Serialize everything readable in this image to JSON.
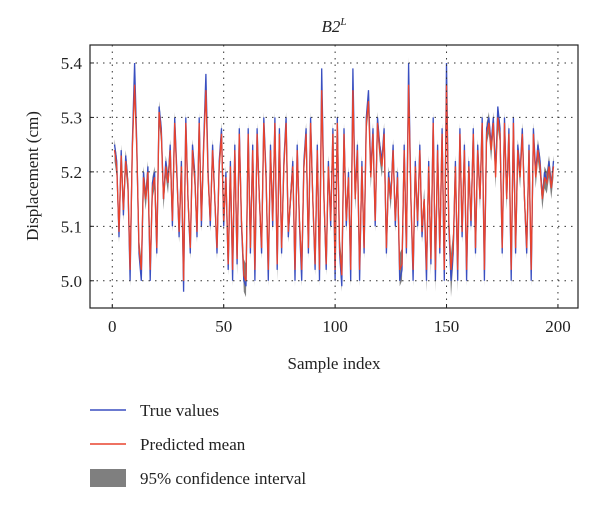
{
  "chart_data": {
    "type": "line",
    "title": "B2",
    "title_superscript": "L",
    "x_label": "Sample index",
    "y_label": "Displacement (cm)",
    "xlim": [
      -10,
      209
    ],
    "ylim": [
      4.95,
      5.433
    ],
    "xticks": [
      0,
      50,
      100,
      150,
      200
    ],
    "yticks": [
      {
        "value": 5.0,
        "label": "5.0"
      },
      {
        "value": 5.1,
        "label": "5.1"
      },
      {
        "value": 5.2,
        "label": "5.2"
      },
      {
        "value": 5.3,
        "label": "5.3"
      },
      {
        "value": 5.4,
        "label": "5.4"
      }
    ],
    "grid": true,
    "x": [
      1,
      2,
      3,
      4,
      5,
      6,
      7,
      8,
      9,
      10,
      11,
      12,
      13,
      14,
      15,
      16,
      17,
      18,
      19,
      20,
      21,
      22,
      23,
      24,
      25,
      26,
      27,
      28,
      29,
      30,
      31,
      32,
      33,
      34,
      35,
      36,
      37,
      38,
      39,
      40,
      41,
      42,
      43,
      44,
      45,
      46,
      47,
      48,
      49,
      50,
      51,
      52,
      53,
      54,
      55,
      56,
      57,
      58,
      59,
      60,
      61,
      62,
      63,
      64,
      65,
      66,
      67,
      68,
      69,
      70,
      71,
      72,
      73,
      74,
      75,
      76,
      77,
      78,
      79,
      80,
      81,
      82,
      83,
      84,
      85,
      86,
      87,
      88,
      89,
      90,
      91,
      92,
      93,
      94,
      95,
      96,
      97,
      98,
      99,
      100,
      101,
      102,
      103,
      104,
      105,
      106,
      107,
      108,
      109,
      110,
      111,
      112,
      113,
      114,
      115,
      116,
      117,
      118,
      119,
      120,
      121,
      122,
      123,
      124,
      125,
      126,
      127,
      128,
      129,
      130,
      131,
      132,
      133,
      134,
      135,
      136,
      137,
      138,
      139,
      140,
      141,
      142,
      143,
      144,
      145,
      146,
      147,
      148,
      149,
      150,
      151,
      152,
      153,
      154,
      155,
      156,
      157,
      158,
      159,
      160,
      161,
      162,
      163,
      164,
      165,
      166,
      167,
      168,
      169,
      170,
      171,
      172,
      173,
      174,
      175,
      176,
      177,
      178,
      179,
      180,
      181,
      182,
      183,
      184,
      185,
      186,
      187,
      188,
      189,
      190,
      191,
      192,
      193,
      194,
      195,
      196,
      197,
      198
    ],
    "band": {
      "name": "95% confidence interval",
      "color": "#7f7f7f",
      "lower": [
        5.22,
        5.19,
        5.07,
        5.21,
        5.11,
        5.2,
        5.16,
        4.99,
        5.22,
        5.33,
        5.22,
        5.04,
        5.0,
        5.17,
        5.13,
        5.18,
        5.0,
        5.15,
        5.17,
        5.04,
        5.29,
        5.25,
        5.13,
        5.19,
        5.16,
        5.22,
        5.09,
        5.27,
        5.17,
        5.07,
        5.19,
        4.98,
        5.27,
        5.13,
        5.04,
        5.22,
        5.17,
        5.07,
        5.27,
        5.09,
        5.22,
        5.33,
        5.17,
        5.09,
        5.22,
        5.13,
        5.04,
        5.19,
        5.25,
        5.09,
        5.17,
        5.01,
        5.19,
        4.99,
        5.22,
        5.01,
        5.25,
        5.09,
        4.98,
        4.97,
        5.25,
        5.04,
        5.22,
        4.99,
        5.25,
        5.13,
        5.04,
        5.27,
        5.17,
        4.99,
        5.22,
        5.09,
        5.27,
        5.0,
        5.25,
        5.04,
        5.19,
        5.27,
        5.07,
        5.13,
        5.19,
        4.99,
        5.22,
        5.09,
        4.99,
        5.19,
        5.25,
        5.04,
        5.27,
        5.13,
        5.01,
        5.22,
        4.99,
        5.33,
        5.13,
        5.01,
        5.19,
        5.09,
        5.25,
        4.99,
        5.27,
        5.04,
        4.98,
        5.25,
        5.09,
        5.17,
        4.99,
        5.33,
        5.13,
        5.22,
        4.99,
        5.19,
        5.04,
        5.27,
        5.31,
        5.17,
        5.25,
        5.09,
        5.27,
        5.22,
        5.19,
        5.25,
        5.04,
        5.17,
        5.13,
        5.22,
        5.09,
        5.17,
        4.99,
        5.0,
        5.22,
        5.04,
        5.33,
        5.13,
        4.99,
        5.19,
        5.09,
        5.22,
        5.07,
        5.13,
        4.98,
        5.19,
        5.01,
        5.27,
        4.98,
        5.22,
        5.04,
        5.25,
        4.99,
        5.33,
        5.09,
        4.97,
        5.03,
        5.19,
        4.98,
        5.25,
        5.07,
        5.22,
        4.99,
        5.19,
        5.09,
        5.25,
        5.04,
        5.22,
        5.13,
        5.27,
        4.99,
        5.25,
        5.27,
        5.22,
        5.27,
        5.17,
        5.28,
        5.25,
        5.04,
        5.27,
        5.13,
        5.25,
        4.99,
        5.27,
        5.04,
        5.22,
        5.17,
        5.25,
        5.13,
        5.04,
        5.22,
        4.99,
        5.25,
        5.17,
        5.22,
        5.19,
        5.13,
        5.17,
        5.16,
        5.19,
        5.15,
        5.19
      ],
      "upper": [
        5.26,
        5.23,
        5.11,
        5.25,
        5.15,
        5.24,
        5.2,
        5.05,
        5.26,
        5.39,
        5.26,
        5.08,
        5.04,
        5.21,
        5.17,
        5.22,
        5.04,
        5.19,
        5.21,
        5.08,
        5.33,
        5.29,
        5.17,
        5.23,
        5.2,
        5.26,
        5.13,
        5.31,
        5.21,
        5.11,
        5.23,
        5.02,
        5.31,
        5.17,
        5.08,
        5.26,
        5.21,
        5.11,
        5.31,
        5.13,
        5.26,
        5.37,
        5.21,
        5.13,
        5.26,
        5.17,
        5.08,
        5.23,
        5.29,
        5.13,
        5.21,
        5.05,
        5.23,
        5.05,
        5.26,
        5.07,
        5.29,
        5.13,
        5.04,
        5.03,
        5.29,
        5.08,
        5.26,
        5.05,
        5.29,
        5.17,
        5.08,
        5.31,
        5.21,
        5.05,
        5.26,
        5.13,
        5.31,
        5.06,
        5.29,
        5.08,
        5.23,
        5.31,
        5.11,
        5.17,
        5.23,
        5.05,
        5.26,
        5.13,
        5.05,
        5.23,
        5.29,
        5.08,
        5.31,
        5.17,
        5.05,
        5.26,
        5.05,
        5.37,
        5.17,
        5.05,
        5.23,
        5.13,
        5.29,
        5.05,
        5.31,
        5.08,
        5.04,
        5.29,
        5.13,
        5.21,
        5.05,
        5.37,
        5.17,
        5.26,
        5.05,
        5.23,
        5.08,
        5.31,
        5.35,
        5.21,
        5.29,
        5.13,
        5.31,
        5.26,
        5.23,
        5.29,
        5.08,
        5.21,
        5.17,
        5.26,
        5.13,
        5.21,
        5.05,
        5.06,
        5.26,
        5.08,
        5.41,
        5.17,
        5.05,
        5.23,
        5.13,
        5.26,
        5.11,
        5.17,
        5.05,
        5.23,
        5.07,
        5.31,
        5.05,
        5.26,
        5.08,
        5.29,
        5.05,
        5.39,
        5.13,
        5.05,
        5.09,
        5.23,
        5.05,
        5.29,
        5.11,
        5.26,
        5.05,
        5.23,
        5.13,
        5.29,
        5.08,
        5.26,
        5.17,
        5.31,
        5.05,
        5.29,
        5.31,
        5.26,
        5.31,
        5.21,
        5.32,
        5.29,
        5.08,
        5.31,
        5.17,
        5.29,
        5.05,
        5.31,
        5.08,
        5.26,
        5.21,
        5.29,
        5.17,
        5.08,
        5.26,
        5.05,
        5.29,
        5.21,
        5.26,
        5.23,
        5.17,
        5.21,
        5.2,
        5.23,
        5.19,
        5.23
      ]
    },
    "series": [
      {
        "name": "True values",
        "color": "#3a4fc0",
        "values": [
          5.25,
          5.22,
          5.08,
          5.24,
          5.12,
          5.23,
          5.18,
          5.0,
          5.25,
          5.4,
          5.25,
          5.05,
          5.0,
          5.2,
          5.15,
          5.21,
          5.0,
          5.18,
          5.2,
          5.05,
          5.32,
          5.28,
          5.15,
          5.22,
          5.18,
          5.25,
          5.1,
          5.3,
          5.2,
          5.08,
          5.22,
          4.98,
          5.3,
          5.15,
          5.05,
          5.25,
          5.2,
          5.08,
          5.3,
          5.1,
          5.25,
          5.38,
          5.2,
          5.1,
          5.25,
          5.15,
          5.05,
          5.22,
          5.28,
          5.1,
          5.2,
          5.02,
          5.22,
          5.0,
          5.25,
          5.03,
          5.28,
          5.1,
          5.0,
          4.99,
          5.28,
          5.05,
          5.25,
          5.0,
          5.28,
          5.15,
          5.05,
          5.3,
          5.2,
          5.0,
          5.25,
          5.1,
          5.3,
          5.02,
          5.28,
          5.05,
          5.22,
          5.3,
          5.08,
          5.15,
          5.22,
          5.0,
          5.25,
          5.1,
          5.0,
          5.22,
          5.28,
          5.05,
          5.3,
          5.15,
          5.02,
          5.25,
          5.0,
          5.39,
          5.15,
          5.02,
          5.22,
          5.1,
          5.28,
          5.0,
          5.3,
          5.05,
          4.99,
          5.28,
          5.1,
          5.2,
          5.0,
          5.39,
          5.15,
          5.25,
          5.0,
          5.22,
          5.05,
          5.3,
          5.35,
          5.2,
          5.28,
          5.1,
          5.3,
          5.25,
          5.22,
          5.28,
          5.05,
          5.2,
          5.15,
          5.25,
          5.1,
          5.2,
          5.0,
          5.02,
          5.25,
          5.05,
          5.4,
          5.15,
          5.0,
          5.22,
          5.1,
          5.25,
          5.08,
          5.15,
          5.0,
          5.22,
          5.03,
          5.3,
          5.0,
          5.25,
          5.05,
          5.28,
          5.0,
          5.4,
          5.1,
          5.0,
          5.05,
          5.22,
          5.0,
          5.28,
          5.08,
          5.25,
          5.0,
          5.22,
          5.1,
          5.28,
          5.05,
          5.25,
          5.15,
          5.3,
          5.0,
          5.28,
          5.3,
          5.25,
          5.3,
          5.2,
          5.32,
          5.28,
          5.05,
          5.3,
          5.15,
          5.28,
          5.0,
          5.3,
          5.05,
          5.25,
          5.2,
          5.28,
          5.15,
          5.05,
          5.25,
          5.0,
          5.28,
          5.2,
          5.25,
          5.22,
          5.15,
          5.2,
          5.18,
          5.22,
          5.17,
          5.22
        ]
      },
      {
        "name": "Predicted mean",
        "color": "#e8432e",
        "values": [
          5.24,
          5.21,
          5.09,
          5.23,
          5.13,
          5.22,
          5.18,
          5.02,
          5.24,
          5.36,
          5.24,
          5.06,
          5.02,
          5.19,
          5.15,
          5.2,
          5.02,
          5.17,
          5.19,
          5.06,
          5.31,
          5.27,
          5.15,
          5.21,
          5.18,
          5.24,
          5.11,
          5.29,
          5.19,
          5.09,
          5.21,
          5.0,
          5.29,
          5.15,
          5.06,
          5.24,
          5.19,
          5.09,
          5.29,
          5.11,
          5.24,
          5.35,
          5.19,
          5.11,
          5.24,
          5.15,
          5.06,
          5.21,
          5.27,
          5.11,
          5.19,
          5.03,
          5.21,
          5.02,
          5.24,
          5.04,
          5.27,
          5.11,
          5.01,
          5.0,
          5.27,
          5.06,
          5.24,
          5.02,
          5.27,
          5.15,
          5.06,
          5.29,
          5.19,
          5.02,
          5.24,
          5.11,
          5.29,
          5.03,
          5.27,
          5.06,
          5.21,
          5.29,
          5.09,
          5.15,
          5.21,
          5.02,
          5.24,
          5.11,
          5.02,
          5.21,
          5.27,
          5.06,
          5.29,
          5.15,
          5.03,
          5.24,
          5.02,
          5.35,
          5.15,
          5.03,
          5.21,
          5.11,
          5.27,
          5.02,
          5.29,
          5.06,
          5.01,
          5.27,
          5.11,
          5.19,
          5.02,
          5.35,
          5.15,
          5.24,
          5.02,
          5.21,
          5.06,
          5.29,
          5.33,
          5.19,
          5.27,
          5.11,
          5.29,
          5.24,
          5.21,
          5.27,
          5.06,
          5.19,
          5.15,
          5.24,
          5.11,
          5.19,
          5.02,
          5.03,
          5.24,
          5.06,
          5.36,
          5.15,
          5.02,
          5.21,
          5.11,
          5.24,
          5.09,
          5.15,
          5.02,
          5.21,
          5.04,
          5.29,
          5.02,
          5.24,
          5.06,
          5.27,
          5.02,
          5.36,
          5.11,
          5.02,
          5.06,
          5.21,
          5.02,
          5.27,
          5.09,
          5.24,
          5.02,
          5.21,
          5.11,
          5.27,
          5.06,
          5.24,
          5.15,
          5.29,
          5.02,
          5.27,
          5.29,
          5.24,
          5.29,
          5.19,
          5.3,
          5.27,
          5.06,
          5.29,
          5.15,
          5.27,
          5.02,
          5.29,
          5.06,
          5.24,
          5.19,
          5.27,
          5.15,
          5.06,
          5.24,
          5.02,
          5.27,
          5.19,
          5.24,
          5.21,
          5.15,
          5.19,
          5.18,
          5.21,
          5.17,
          5.21
        ]
      }
    ]
  }
}
